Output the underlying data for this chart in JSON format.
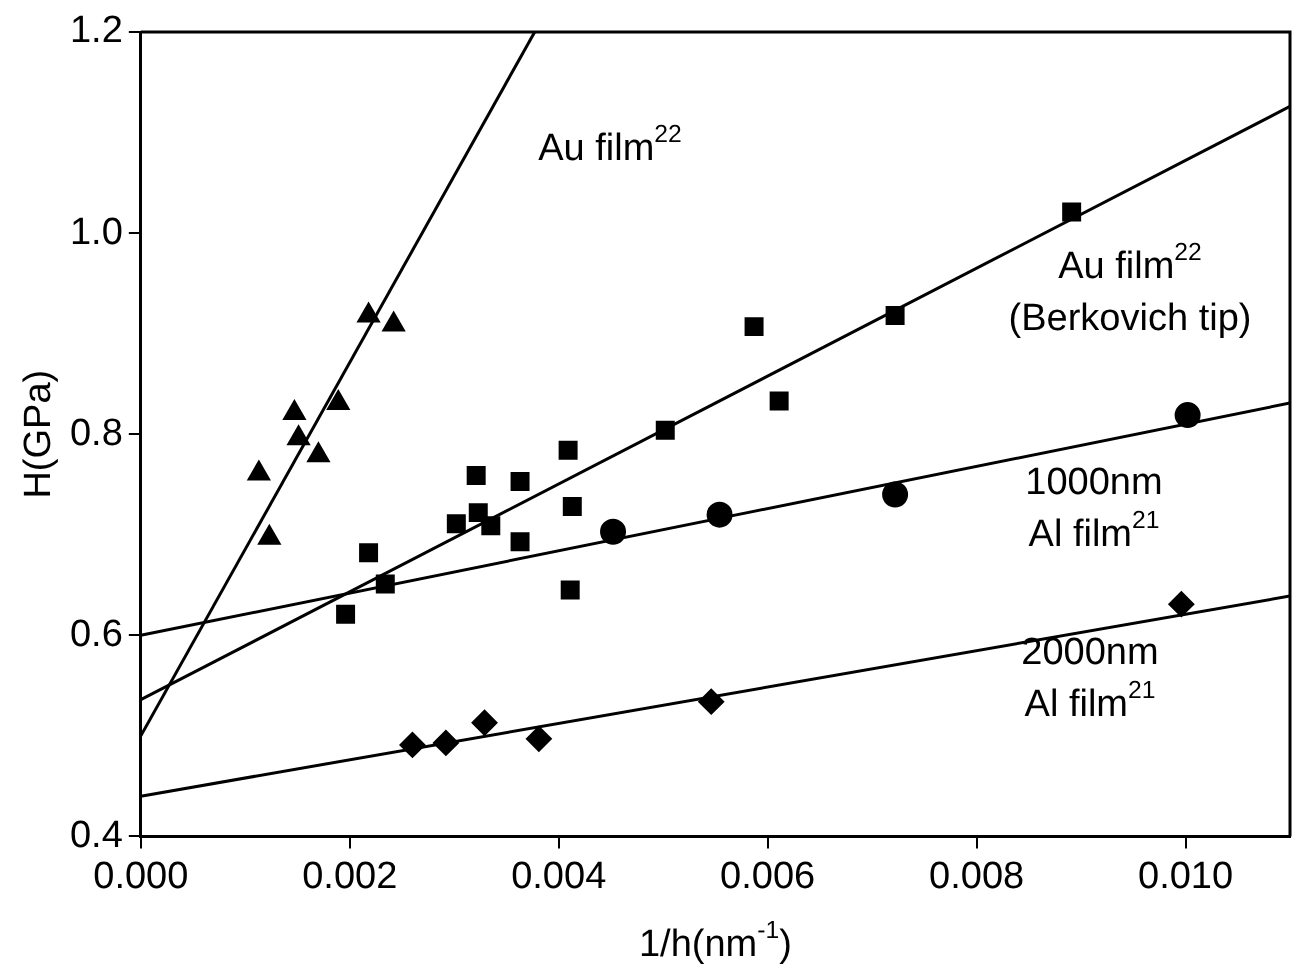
{
  "chart_data": {
    "type": "scatter",
    "xlabel": "1/h(nm$^{-1}$)",
    "ylabel": "H(GPa)",
    "xlim": [
      0,
      0.011
    ],
    "ylim": [
      0.4,
      1.2
    ],
    "xticks": [
      {
        "value": 0,
        "label": "0.000"
      },
      {
        "value": 0.002,
        "label": "0.002"
      },
      {
        "value": 0.004,
        "label": "0.004"
      },
      {
        "value": 0.006,
        "label": "0.006"
      },
      {
        "value": 0.008,
        "label": "0.008"
      },
      {
        "value": 0.01,
        "label": "0.010"
      }
    ],
    "yticks": [
      {
        "value": 0.4,
        "label": "0.4"
      },
      {
        "value": 0.6,
        "label": "0.6"
      },
      {
        "value": 0.8,
        "label": "0.8"
      },
      {
        "value": 1.0,
        "label": "1.0"
      },
      {
        "value": 1.2,
        "label": "1.2"
      }
    ],
    "grid": false,
    "legend": false,
    "series": [
      {
        "marker": "triangle",
        "color": "#000000",
        "x": [
          0.00113,
          0.00123,
          0.00147,
          0.00151,
          0.0017,
          0.00189,
          0.00218,
          0.00242
        ],
        "values": [
          0.761,
          0.697,
          0.821,
          0.796,
          0.779,
          0.831,
          0.918,
          0.909
        ]
      },
      {
        "marker": "square",
        "color": "#000000",
        "x": [
          0.00196,
          0.00218,
          0.00234,
          0.00302,
          0.00321,
          0.00323,
          0.00335,
          0.00363,
          0.00363,
          0.00409,
          0.00413,
          0.00411,
          0.00502,
          0.00587,
          0.00611,
          0.00722,
          0.00891
        ],
        "values": [
          0.621,
          0.682,
          0.651,
          0.711,
          0.759,
          0.722,
          0.709,
          0.753,
          0.693,
          0.784,
          0.728,
          0.645,
          0.804,
          0.907,
          0.833,
          0.918,
          1.021
        ]
      },
      {
        "marker": "circle",
        "color": "#000000",
        "x": [
          0.00452,
          0.00554,
          0.00722,
          0.01002
        ],
        "values": [
          0.703,
          0.72,
          0.74,
          0.819
        ]
      },
      {
        "marker": "diamond",
        "color": "#000000",
        "x": [
          0.0026,
          0.00292,
          0.00329,
          0.00381,
          0.00546,
          0.00996
        ],
        "values": [
          0.491,
          0.493,
          0.513,
          0.497,
          0.534,
          0.631
        ]
      },
      {
        "type": "line",
        "marker": "none",
        "line_style": "solid",
        "color": "#000000",
        "x": [
          0,
          0.00377
        ],
        "values": [
          0.5,
          1.2
        ]
      },
      {
        "type": "line",
        "marker": "none",
        "line_style": "solid",
        "color": "#000000",
        "x": [
          0,
          0.011
        ],
        "values": [
          0.536,
          1.126
        ]
      },
      {
        "type": "line",
        "marker": "none",
        "line_style": "solid",
        "color": "#000000",
        "x": [
          0,
          0.011
        ],
        "values": [
          0.6,
          0.831
        ]
      },
      {
        "type": "line",
        "marker": "none",
        "line_style": "solid",
        "color": "#000000",
        "x": [
          0,
          0.011
        ],
        "values": [
          0.44,
          0.639
        ]
      }
    ],
    "annotations": [
      "Au film$^{22}$",
      "Au film$^{22}$",
      "(Berkovich tip)",
      "1000nm",
      "Al film$^{21}$",
      "2000nm",
      "Al film$^{21}$"
    ]
  }
}
